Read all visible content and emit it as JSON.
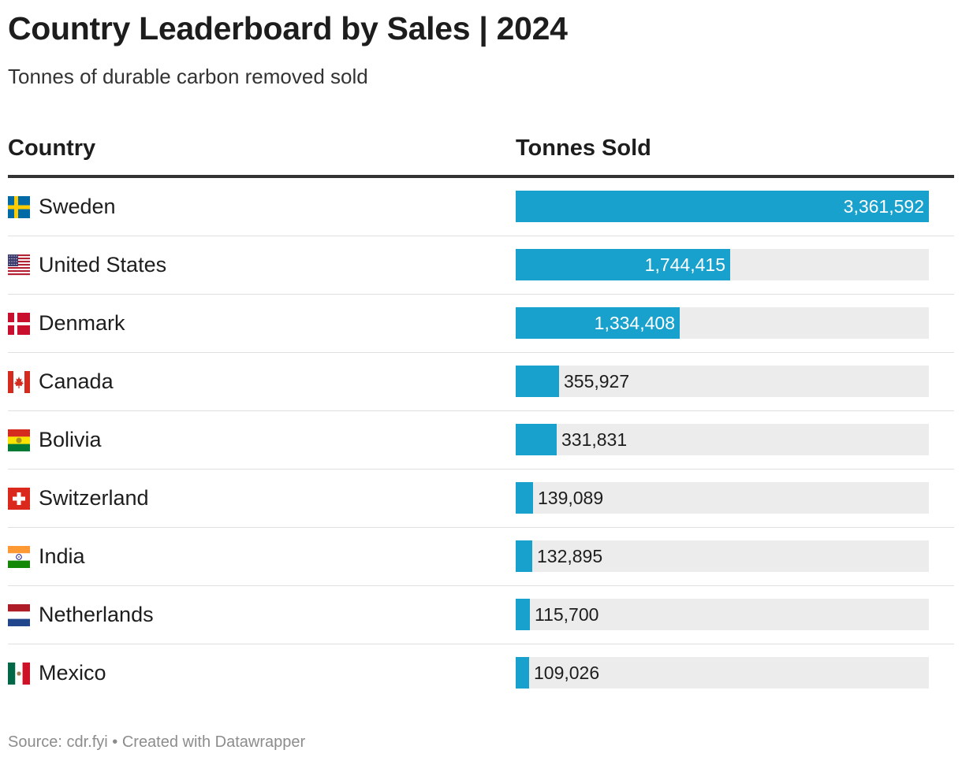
{
  "title": "Country Leaderboard by Sales | 2024",
  "subtitle": "Tonnes of durable carbon removed sold",
  "columns": {
    "country": "Country",
    "value": "Tonnes Sold"
  },
  "footer": "Source: cdr.fyi • Created with Datawrapper",
  "colors": {
    "bar": "#18a1cd",
    "track": "#ececec"
  },
  "chart_data": {
    "type": "bar",
    "orientation": "horizontal",
    "categories": [
      "Sweden",
      "United States",
      "Denmark",
      "Canada",
      "Bolivia",
      "Switzerland",
      "India",
      "Netherlands",
      "Mexico"
    ],
    "values": [
      3361592,
      1744415,
      1334408,
      355927,
      331831,
      139089,
      132895,
      115700,
      109026
    ],
    "value_labels": [
      "3,361,592",
      "1,744,415",
      "1,334,408",
      "355,927",
      "331,831",
      "139,089",
      "132,895",
      "115,700",
      "109,026"
    ],
    "flags": [
      "sweden-flag-icon",
      "united-states-flag-icon",
      "denmark-flag-icon",
      "canada-flag-icon",
      "bolivia-flag-icon",
      "switzerland-flag-icon",
      "india-flag-icon",
      "netherlands-flag-icon",
      "mexico-flag-icon"
    ],
    "xlim": [
      0,
      3361592
    ]
  }
}
